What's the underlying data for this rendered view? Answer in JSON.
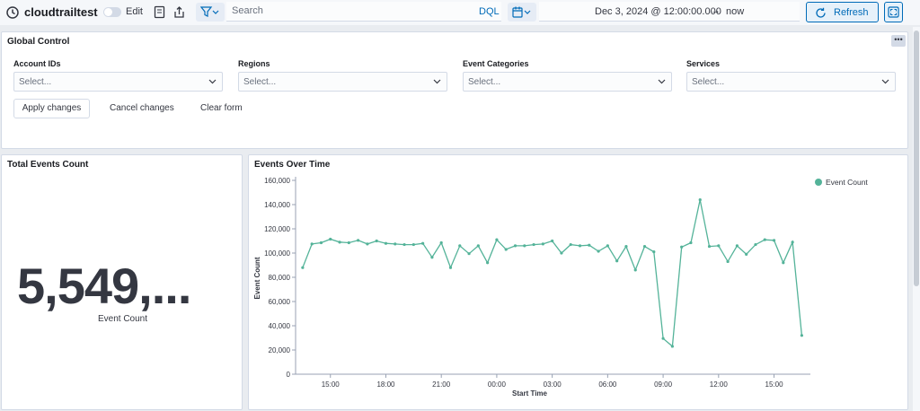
{
  "topbar": {
    "title": "cloudtrailtest",
    "edit_label": "Edit",
    "search_placeholder": "Search",
    "dql_label": "DQL",
    "date_start": "Dec 3, 2024 @ 12:00:00.000",
    "date_arrow": "→",
    "date_end": "now",
    "refresh_label": "Refresh"
  },
  "global_control": {
    "title": "Global Control",
    "more_label": "•••",
    "controls": [
      {
        "label": "Account IDs",
        "placeholder": "Select..."
      },
      {
        "label": "Regions",
        "placeholder": "Select..."
      },
      {
        "label": "Event Categories",
        "placeholder": "Select..."
      },
      {
        "label": "Services",
        "placeholder": "Select..."
      }
    ],
    "apply_label": "Apply changes",
    "cancel_label": "Cancel changes",
    "clear_label": "Clear form"
  },
  "total_events": {
    "title": "Total Events Count",
    "value": "5,549,...",
    "label": "Event Count"
  },
  "events_over_time": {
    "title": "Events Over Time"
  },
  "chart_data": {
    "type": "line",
    "title": "Events Over Time",
    "xlabel": "Start Time",
    "ylabel": "Event Count",
    "ylim": [
      0,
      160000
    ],
    "yticks": [
      "0",
      "20,000",
      "40,000",
      "60,000",
      "80,000",
      "100,000",
      "120,000",
      "140,000",
      "160,000"
    ],
    "xticks": [
      "15:00",
      "18:00",
      "21:00",
      "00:00",
      "03:00",
      "06:00",
      "09:00",
      "12:00",
      "15:00"
    ],
    "legend": "top-right",
    "color": "#54b399",
    "series": [
      {
        "name": "Event Count",
        "x": [
          "13:30",
          "14:00",
          "14:30",
          "15:00",
          "15:30",
          "16:00",
          "16:30",
          "17:00",
          "17:30",
          "18:00",
          "18:30",
          "19:00",
          "19:30",
          "20:00",
          "20:30",
          "21:00",
          "21:30",
          "22:00",
          "22:30",
          "23:00",
          "23:30",
          "00:00",
          "00:30",
          "01:00",
          "01:30",
          "02:00",
          "02:30",
          "03:00",
          "03:30",
          "04:00",
          "04:30",
          "05:00",
          "05:30",
          "06:00",
          "06:30",
          "07:00",
          "07:30",
          "08:00",
          "08:30",
          "09:00",
          "09:30",
          "10:00",
          "10:30",
          "11:00",
          "11:30",
          "12:00",
          "12:30",
          "13:00",
          "13:30",
          "14:00",
          "14:30",
          "15:00",
          "15:30",
          "16:00",
          "16:30"
        ],
        "values": [
          88000,
          107500,
          108500,
          111500,
          109000,
          108500,
          110500,
          107500,
          110000,
          108000,
          107500,
          107000,
          107000,
          108000,
          96500,
          108500,
          88000,
          106000,
          99500,
          106000,
          92000,
          111000,
          103000,
          106000,
          106000,
          107000,
          107500,
          110000,
          100000,
          107000,
          106000,
          106500,
          101500,
          106000,
          93500,
          105500,
          86000,
          105500,
          101000,
          29500,
          23000,
          105000,
          108500,
          144000,
          105500,
          106000,
          93000,
          106000,
          99000,
          107000,
          111000,
          110500,
          92000,
          109000,
          32000
        ]
      }
    ]
  }
}
